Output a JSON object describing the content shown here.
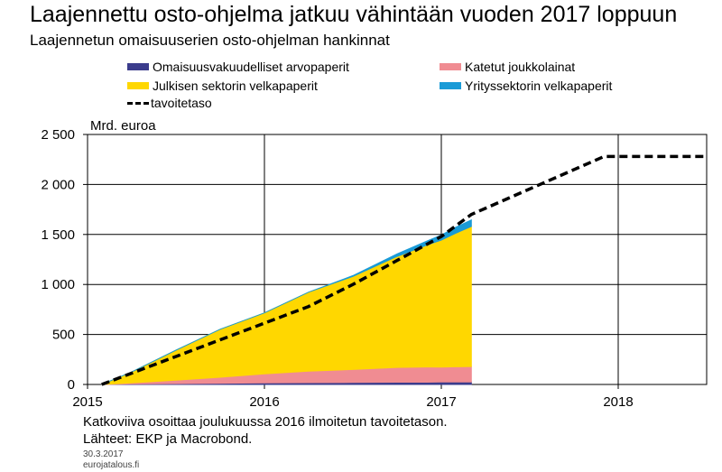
{
  "title": "Laajennettu osto-ohjelma jatkuu vähintään vuoden 2017 loppuun",
  "subtitle": "Laajennetun omaisuuserien osto-ohjelman hankinnat",
  "unit_label": "Mrd. euroa",
  "notes": {
    "footnote": "Katkoviiva osoittaa joulukuussa 2016 ilmoitetun tavoitetason.",
    "sources": "Lähteet: EKP ja Macrobond.",
    "date": "30.3.2017",
    "site": "eurojatalous.fi"
  },
  "chart_data": {
    "type": "area",
    "title": "Laajennettu osto-ohjelma jatkuu vähintään vuoden 2017 loppuun",
    "subtitle": "Laajennetun omaisuuserien osto-ohjelman hankinnat",
    "ylabel": "Mrd. euroa",
    "ylim": [
      0,
      2500
    ],
    "xlim": [
      2015.0,
      2018.5
    ],
    "y_ticks": [
      0,
      500,
      1000,
      1500,
      2000,
      2500
    ],
    "y_tick_labels": [
      "0",
      "500",
      "1 000",
      "1 500",
      "2 000",
      "2 500"
    ],
    "x_ticks": [
      2015,
      2016,
      2017,
      2018
    ],
    "x_tick_labels": [
      "2015",
      "2016",
      "2017",
      "2018"
    ],
    "grid": true,
    "legend_position": "top",
    "stacked": true,
    "x": [
      2015.08,
      2015.25,
      2015.5,
      2015.75,
      2016.0,
      2016.25,
      2016.5,
      2016.75,
      2016.92,
      2017.0,
      2017.08,
      2017.17
    ],
    "series": [
      {
        "name": "Omaisuusvakuudelliset arvopaperit",
        "color": "#3b3c8c",
        "values": [
          0,
          5,
          8,
          12,
          16,
          18,
          20,
          23,
          23,
          24,
          25,
          25
        ]
      },
      {
        "name": "Katetut joukkolainat",
        "color": "#f08c92",
        "values": [
          0,
          10,
          35,
          60,
          90,
          115,
          130,
          148,
          152,
          150,
          152,
          155
        ]
      },
      {
        "name": "Julkisen sektorin velkapaperit",
        "color": "#ffd700",
        "values": [
          0,
          110,
          300,
          480,
          610,
          790,
          930,
          1110,
          1220,
          1270,
          1335,
          1400
        ]
      },
      {
        "name": "Yrityssektorin velkapaperit",
        "color": "#1a9bd7",
        "values": [
          0,
          0,
          0,
          0,
          0,
          0,
          8,
          25,
          40,
          50,
          58,
          65
        ]
      }
    ],
    "target": {
      "name": "tavoitetaso",
      "color": "#000000",
      "style": "dashed",
      "x": [
        2015.08,
        2016.25,
        2016.5,
        2016.75,
        2017.0,
        2017.17,
        2017.92,
        2018.5
      ],
      "values": [
        0,
        780,
        1000,
        1240,
        1480,
        1700,
        2280,
        2280
      ]
    }
  }
}
